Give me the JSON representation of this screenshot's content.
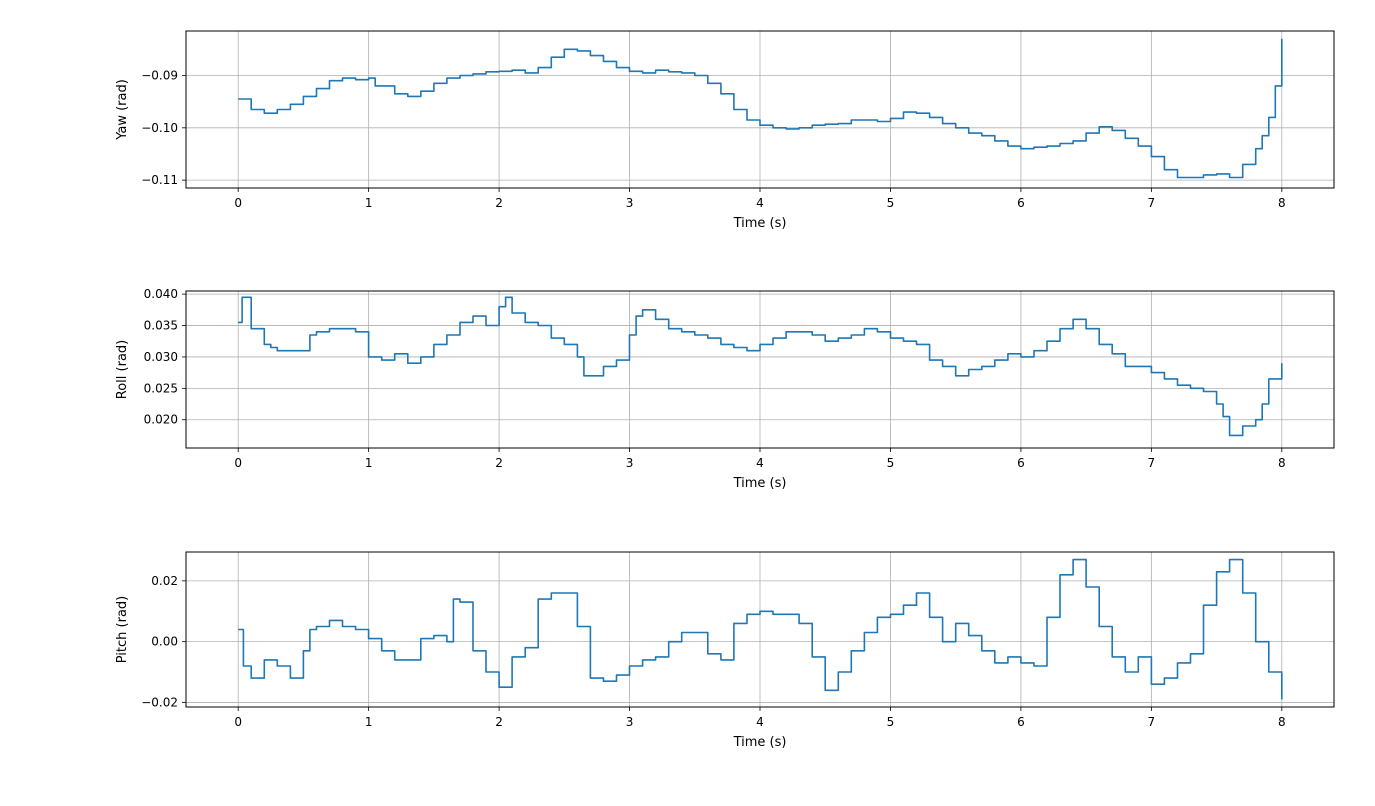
{
  "chart_data": [
    {
      "type": "line",
      "xlabel": "Time (s)",
      "ylabel": "Yaw (rad)",
      "xlim": [
        -0.4,
        8.4
      ],
      "ylim": [
        -0.1115,
        -0.0815
      ],
      "xticks": [
        0,
        1,
        2,
        3,
        4,
        5,
        6,
        7,
        8
      ],
      "yticks": [
        -0.09,
        -0.1,
        -0.11
      ],
      "ytick_labels": [
        "−0.09",
        "−0.10",
        "−0.11"
      ],
      "grid": true,
      "color": "#1f77b4",
      "series": [
        {
          "x": [
            0,
            0.1,
            0.2,
            0.3,
            0.4,
            0.5,
            0.6,
            0.7,
            0.8,
            0.9,
            1.0,
            1.05,
            1.2,
            1.3,
            1.4,
            1.5,
            1.6,
            1.7,
            1.8,
            1.9,
            2.0,
            2.1,
            2.2,
            2.3,
            2.4,
            2.5,
            2.6,
            2.7,
            2.8,
            2.9,
            3.0,
            3.1,
            3.2,
            3.3,
            3.4,
            3.5,
            3.6,
            3.7,
            3.8,
            3.9,
            4.0,
            4.1,
            4.2,
            4.3,
            4.4,
            4.5,
            4.6,
            4.7,
            4.8,
            4.9,
            5.0,
            5.1,
            5.2,
            5.3,
            5.4,
            5.5,
            5.6,
            5.7,
            5.8,
            5.9,
            6.0,
            6.1,
            6.2,
            6.3,
            6.4,
            6.5,
            6.6,
            6.7,
            6.8,
            6.9,
            7.0,
            7.1,
            7.2,
            7.3,
            7.4,
            7.5,
            7.6,
            7.7,
            7.8,
            7.85,
            7.9,
            7.95,
            8.0
          ],
          "y": [
            -0.0945,
            -0.0965,
            -0.0972,
            -0.0965,
            -0.0955,
            -0.094,
            -0.0925,
            -0.091,
            -0.0905,
            -0.0908,
            -0.0905,
            -0.092,
            -0.0935,
            -0.094,
            -0.093,
            -0.0915,
            -0.0905,
            -0.09,
            -0.0897,
            -0.0893,
            -0.0892,
            -0.089,
            -0.0895,
            -0.0885,
            -0.0865,
            -0.085,
            -0.0853,
            -0.0862,
            -0.0873,
            -0.0885,
            -0.0892,
            -0.0895,
            -0.089,
            -0.0893,
            -0.0895,
            -0.09,
            -0.0915,
            -0.0935,
            -0.0965,
            -0.0985,
            -0.0995,
            -0.1,
            -0.1002,
            -0.1,
            -0.0995,
            -0.0993,
            -0.0992,
            -0.0985,
            -0.0985,
            -0.0988,
            -0.0982,
            -0.097,
            -0.0972,
            -0.098,
            -0.0992,
            -0.1,
            -0.101,
            -0.1015,
            -0.1025,
            -0.1035,
            -0.104,
            -0.1037,
            -0.1035,
            -0.103,
            -0.1025,
            -0.101,
            -0.0998,
            -0.1005,
            -0.102,
            -0.1035,
            -0.1055,
            -0.108,
            -0.1095,
            -0.1095,
            -0.109,
            -0.1088,
            -0.1095,
            -0.107,
            -0.104,
            -0.1015,
            -0.098,
            -0.092,
            -0.083
          ]
        }
      ]
    },
    {
      "type": "line",
      "xlabel": "Time (s)",
      "ylabel": "Roll (rad)",
      "xlim": [
        -0.4,
        8.4
      ],
      "ylim": [
        0.0155,
        0.0405
      ],
      "xticks": [
        0,
        1,
        2,
        3,
        4,
        5,
        6,
        7,
        8
      ],
      "yticks": [
        0.04,
        0.035,
        0.03,
        0.025,
        0.02
      ],
      "ytick_labels": [
        "0.040",
        "0.035",
        "0.030",
        "0.025",
        "0.020"
      ],
      "grid": true,
      "color": "#1f77b4",
      "series": [
        {
          "x": [
            0,
            0.03,
            0.06,
            0.1,
            0.15,
            0.2,
            0.25,
            0.3,
            0.4,
            0.5,
            0.55,
            0.6,
            0.7,
            0.8,
            0.9,
            1.0,
            1.1,
            1.2,
            1.3,
            1.4,
            1.5,
            1.6,
            1.7,
            1.8,
            1.9,
            2.0,
            2.05,
            2.1,
            2.2,
            2.3,
            2.4,
            2.5,
            2.6,
            2.65,
            2.8,
            2.9,
            3.0,
            3.05,
            3.1,
            3.2,
            3.3,
            3.4,
            3.5,
            3.6,
            3.7,
            3.8,
            3.9,
            4.0,
            4.1,
            4.2,
            4.3,
            4.4,
            4.5,
            4.6,
            4.7,
            4.8,
            4.9,
            5.0,
            5.1,
            5.2,
            5.3,
            5.4,
            5.5,
            5.6,
            5.7,
            5.8,
            5.9,
            6.0,
            6.1,
            6.2,
            6.3,
            6.4,
            6.5,
            6.6,
            6.7,
            6.8,
            6.9,
            7.0,
            7.1,
            7.2,
            7.3,
            7.4,
            7.5,
            7.55,
            7.6,
            7.7,
            7.8,
            7.85,
            7.9,
            8.0
          ],
          "y": [
            0.0355,
            0.0395,
            0.0395,
            0.0345,
            0.0345,
            0.032,
            0.0315,
            0.031,
            0.031,
            0.031,
            0.0335,
            0.034,
            0.0345,
            0.0345,
            0.034,
            0.03,
            0.0295,
            0.0305,
            0.029,
            0.03,
            0.032,
            0.0335,
            0.0355,
            0.0365,
            0.035,
            0.038,
            0.0395,
            0.037,
            0.0355,
            0.035,
            0.033,
            0.032,
            0.03,
            0.027,
            0.0285,
            0.0295,
            0.0335,
            0.0365,
            0.0375,
            0.036,
            0.0345,
            0.034,
            0.0335,
            0.033,
            0.032,
            0.0315,
            0.031,
            0.032,
            0.033,
            0.034,
            0.034,
            0.0335,
            0.0325,
            0.033,
            0.0335,
            0.0345,
            0.034,
            0.033,
            0.0325,
            0.032,
            0.0295,
            0.0285,
            0.027,
            0.028,
            0.0285,
            0.0295,
            0.0305,
            0.03,
            0.031,
            0.0325,
            0.0345,
            0.036,
            0.0345,
            0.032,
            0.0305,
            0.0285,
            0.0285,
            0.0275,
            0.0265,
            0.0255,
            0.025,
            0.0245,
            0.0225,
            0.0205,
            0.0175,
            0.019,
            0.02,
            0.0225,
            0.0265,
            0.029
          ]
        }
      ]
    },
    {
      "type": "line",
      "xlabel": "Time (s)",
      "ylabel": "Pitch (rad)",
      "xlim": [
        -0.4,
        8.4
      ],
      "ylim": [
        -0.0215,
        0.0295
      ],
      "xticks": [
        0,
        1,
        2,
        3,
        4,
        5,
        6,
        7,
        8
      ],
      "yticks": [
        0.02,
        0.0,
        -0.02
      ],
      "ytick_labels": [
        "0.02",
        "0.00",
        "−0.02"
      ],
      "grid": true,
      "color": "#1f77b4",
      "series": [
        {
          "x": [
            0,
            0.04,
            0.1,
            0.2,
            0.3,
            0.4,
            0.5,
            0.55,
            0.6,
            0.7,
            0.8,
            0.9,
            1.0,
            1.1,
            1.2,
            1.3,
            1.4,
            1.5,
            1.6,
            1.65,
            1.7,
            1.8,
            1.9,
            2.0,
            2.1,
            2.2,
            2.3,
            2.4,
            2.5,
            2.6,
            2.7,
            2.8,
            2.9,
            3.0,
            3.1,
            3.2,
            3.3,
            3.4,
            3.5,
            3.6,
            3.7,
            3.8,
            3.9,
            4.0,
            4.1,
            4.2,
            4.3,
            4.4,
            4.5,
            4.6,
            4.7,
            4.8,
            4.9,
            5.0,
            5.1,
            5.2,
            5.3,
            5.4,
            5.5,
            5.6,
            5.7,
            5.8,
            5.9,
            6.0,
            6.1,
            6.2,
            6.3,
            6.4,
            6.5,
            6.6,
            6.7,
            6.8,
            6.9,
            7.0,
            7.1,
            7.2,
            7.3,
            7.4,
            7.5,
            7.6,
            7.7,
            7.8,
            7.9,
            8.0
          ],
          "y": [
            0.004,
            -0.008,
            -0.012,
            -0.006,
            -0.008,
            -0.012,
            -0.003,
            0.004,
            0.005,
            0.007,
            0.005,
            0.004,
            0.001,
            -0.003,
            -0.006,
            -0.006,
            0.001,
            0.002,
            0.0,
            0.014,
            0.013,
            -0.003,
            -0.01,
            -0.015,
            -0.005,
            -0.002,
            0.014,
            0.016,
            0.016,
            0.005,
            -0.012,
            -0.013,
            -0.011,
            -0.008,
            -0.006,
            -0.005,
            0.0,
            0.003,
            0.003,
            -0.004,
            -0.006,
            0.006,
            0.009,
            0.01,
            0.009,
            0.009,
            0.006,
            -0.005,
            -0.016,
            -0.01,
            -0.003,
            0.003,
            0.008,
            0.009,
            0.012,
            0.016,
            0.008,
            0.0,
            0.006,
            0.002,
            -0.003,
            -0.007,
            -0.005,
            -0.007,
            -0.008,
            0.008,
            0.022,
            0.027,
            0.018,
            0.005,
            -0.005,
            -0.01,
            -0.005,
            -0.014,
            -0.012,
            -0.007,
            -0.004,
            0.012,
            0.023,
            0.027,
            0.016,
            0.0,
            -0.01,
            -0.019
          ]
        }
      ]
    }
  ]
}
